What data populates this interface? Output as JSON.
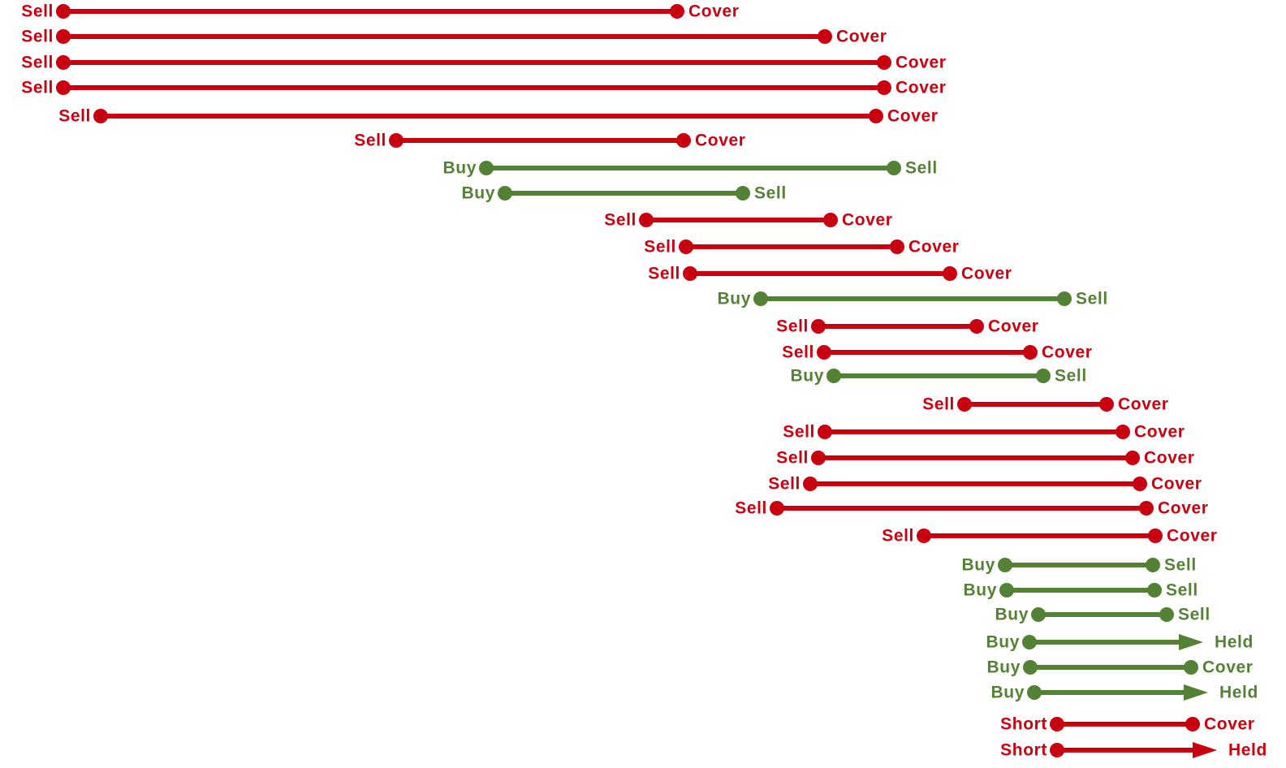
{
  "colors": {
    "short_side": "#c8000f",
    "long_side": "#548235"
  },
  "trades": [
    {
      "entry_label": "Sell",
      "exit_label": "Cover",
      "side": "short",
      "end_style": "dot",
      "start": 78,
      "end": 834
    },
    {
      "entry_label": "Sell",
      "exit_label": "Cover",
      "side": "short",
      "end_style": "dot",
      "start": 78,
      "end": 1016
    },
    {
      "entry_label": "Sell",
      "exit_label": "Cover",
      "side": "short",
      "end_style": "dot",
      "start": 78,
      "end": 1089
    },
    {
      "entry_label": "Sell",
      "exit_label": "Cover",
      "side": "short",
      "end_style": "dot",
      "start": 78,
      "end": 1089
    },
    {
      "entry_label": "Sell",
      "exit_label": "Cover",
      "side": "short",
      "end_style": "dot",
      "start": 124,
      "end": 1079
    },
    {
      "entry_label": "Sell",
      "exit_label": "Cover",
      "side": "short",
      "end_style": "dot",
      "start": 488,
      "end": 842
    },
    {
      "entry_label": "Buy",
      "exit_label": "Sell",
      "side": "long",
      "end_style": "dot",
      "start": 599,
      "end": 1101
    },
    {
      "entry_label": "Buy",
      "exit_label": "Sell",
      "side": "long",
      "end_style": "dot",
      "start": 622,
      "end": 915
    },
    {
      "entry_label": "Sell",
      "exit_label": "Cover",
      "side": "short",
      "end_style": "dot",
      "start": 796,
      "end": 1023
    },
    {
      "entry_label": "Sell",
      "exit_label": "Cover",
      "side": "short",
      "end_style": "dot",
      "start": 845,
      "end": 1105
    },
    {
      "entry_label": "Sell",
      "exit_label": "Cover",
      "side": "short",
      "end_style": "dot",
      "start": 850,
      "end": 1170
    },
    {
      "entry_label": "Buy",
      "exit_label": "Sell",
      "side": "long",
      "end_style": "dot",
      "start": 937,
      "end": 1311
    },
    {
      "entry_label": "Sell",
      "exit_label": "Cover",
      "side": "short",
      "end_style": "dot",
      "start": 1008,
      "end": 1203
    },
    {
      "entry_label": "Sell",
      "exit_label": "Cover",
      "side": "short",
      "end_style": "dot",
      "start": 1015,
      "end": 1269
    },
    {
      "entry_label": "Buy",
      "exit_label": "Sell",
      "side": "long",
      "end_style": "dot",
      "start": 1027,
      "end": 1285
    },
    {
      "entry_label": "Sell",
      "exit_label": "Cover",
      "side": "short",
      "end_style": "dot",
      "start": 1188,
      "end": 1363
    },
    {
      "entry_label": "Sell",
      "exit_label": "Cover",
      "side": "short",
      "end_style": "dot",
      "start": 1016,
      "end": 1383
    },
    {
      "entry_label": "Sell",
      "exit_label": "Cover",
      "side": "short",
      "end_style": "dot",
      "start": 1008,
      "end": 1395
    },
    {
      "entry_label": "Sell",
      "exit_label": "Cover",
      "side": "short",
      "end_style": "dot",
      "start": 998,
      "end": 1404
    },
    {
      "entry_label": "Sell",
      "exit_label": "Cover",
      "side": "short",
      "end_style": "dot",
      "start": 957,
      "end": 1412
    },
    {
      "entry_label": "Sell",
      "exit_label": "Cover",
      "side": "short",
      "end_style": "dot",
      "start": 1138,
      "end": 1423
    },
    {
      "entry_label": "Buy",
      "exit_label": "Sell",
      "side": "long",
      "end_style": "dot",
      "start": 1238,
      "end": 1420
    },
    {
      "entry_label": "Buy",
      "exit_label": "Sell",
      "side": "long",
      "end_style": "dot",
      "start": 1240,
      "end": 1422
    },
    {
      "entry_label": "Buy",
      "exit_label": "Sell",
      "side": "long",
      "end_style": "dot",
      "start": 1279,
      "end": 1437
    },
    {
      "entry_label": "Buy",
      "exit_label": "Held",
      "side": "long",
      "end_style": "arrow",
      "start": 1268,
      "end": 1482
    },
    {
      "entry_label": "Buy",
      "exit_label": "Cover",
      "side": "long",
      "end_style": "dot",
      "start": 1269,
      "end": 1467
    },
    {
      "entry_label": "Buy",
      "exit_label": "Held",
      "side": "long",
      "end_style": "arrow",
      "start": 1274,
      "end": 1488
    },
    {
      "entry_label": "Short",
      "exit_label": "Cover",
      "side": "short",
      "end_style": "dot",
      "start": 1302,
      "end": 1469
    },
    {
      "entry_label": "Short",
      "exit_label": "Held",
      "side": "short",
      "end_style": "arrow",
      "start": 1302,
      "end": 1499
    }
  ]
}
